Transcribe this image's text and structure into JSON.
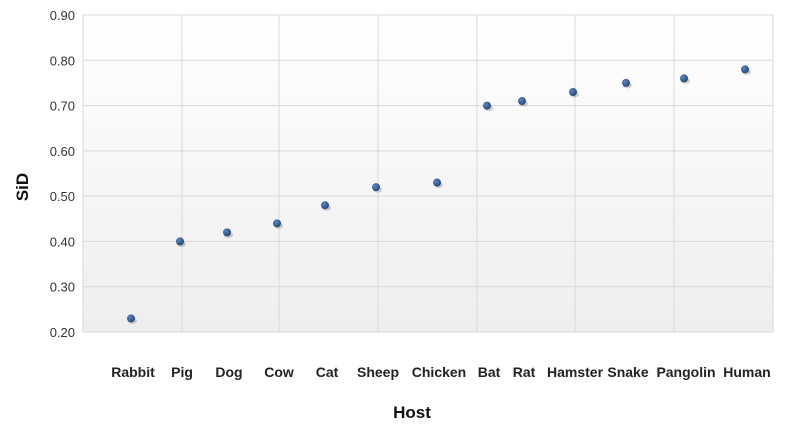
{
  "chart_data": {
    "type": "scatter",
    "title": "",
    "xlabel": "Host",
    "ylabel": "SiD",
    "categories": [
      "Rabbit",
      "Pig",
      "Dog",
      "Cow",
      "Cat",
      "Sheep",
      "Chicken",
      "Bat",
      "Rat",
      "Hamster",
      "Snake",
      "Pangolin",
      "Human"
    ],
    "values": [
      0.23,
      0.4,
      0.42,
      0.44,
      0.48,
      0.52,
      0.53,
      0.7,
      0.71,
      0.73,
      0.75,
      0.76,
      0.78
    ],
    "ylim": [
      0.2,
      0.9
    ],
    "yticks": [
      "0.20",
      "0.30",
      "0.40",
      "0.50",
      "0.60",
      "0.70",
      "0.80",
      "0.90"
    ],
    "grid": true,
    "legend": "none",
    "highlight_category": "Human",
    "colors": {
      "point": "#1f3f6e",
      "highlight_label": "#c0392b",
      "label": "#222222",
      "grid": "#d9d9d9",
      "plot_bg_top": "#ffffff",
      "plot_bg_bottom": "#eeeeee"
    }
  }
}
